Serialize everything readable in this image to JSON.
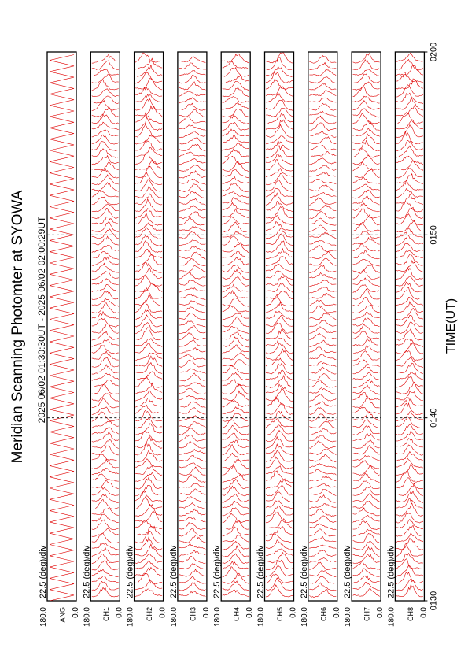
{
  "title": "Meridian Scanning Photomter at SYOWA",
  "time_range": "2025 06/02 01:30:30UT - 2025 06/02 02:00:29UT",
  "colors": {
    "trace": "#e00000",
    "frame": "#000000",
    "background": "#ffffff"
  },
  "chart_data": {
    "type": "line",
    "orientation": "rotated 90 degrees counter-clockwise",
    "title": "Meridian Scanning Photomter at SYOWA",
    "subtitle": "2025 06/02 01:30:30UT - 2025 06/02 02:00:29UT",
    "xlabel": "TIME(UT)",
    "x_ticks": [
      "0130",
      "0140",
      "0150",
      "0200"
    ],
    "x_range": [
      "0130",
      "0200"
    ],
    "panels": [
      {
        "channel": "ANG",
        "scale": "22.5 (deg)/div",
        "ylim_labels": [
          "0.0",
          "180.0"
        ]
      },
      {
        "channel": "CH1",
        "scale": "22.5 (deg)/div",
        "ylim_labels": [
          "0.0",
          "180.0"
        ]
      },
      {
        "channel": "CH2",
        "scale": "22.5 (deg)/div",
        "ylim_labels": [
          "0.0",
          "180.0"
        ]
      },
      {
        "channel": "CH3",
        "scale": "22.5 (deg)/div",
        "ylim_labels": [
          "0.0",
          "180.0"
        ]
      },
      {
        "channel": "CH4",
        "scale": "22.5 (deg)/div",
        "ylim_labels": [
          "0.0",
          "180.0"
        ]
      },
      {
        "channel": "CH5",
        "scale": "22.5 (deg)/div",
        "ylim_labels": [
          "0.0",
          "180.0"
        ]
      },
      {
        "channel": "CH6",
        "scale": "22.5 (deg)/div",
        "ylim_labels": [
          "0.0",
          "180.0"
        ]
      },
      {
        "channel": "CH7",
        "scale": "22.5 (deg)/div",
        "ylim_labels": [
          "0.0",
          "180.0"
        ]
      },
      {
        "channel": "CH8",
        "scale": "22.5 (deg)/div",
        "ylim_labels": [
          "0.0",
          "180.0"
        ]
      }
    ]
  }
}
